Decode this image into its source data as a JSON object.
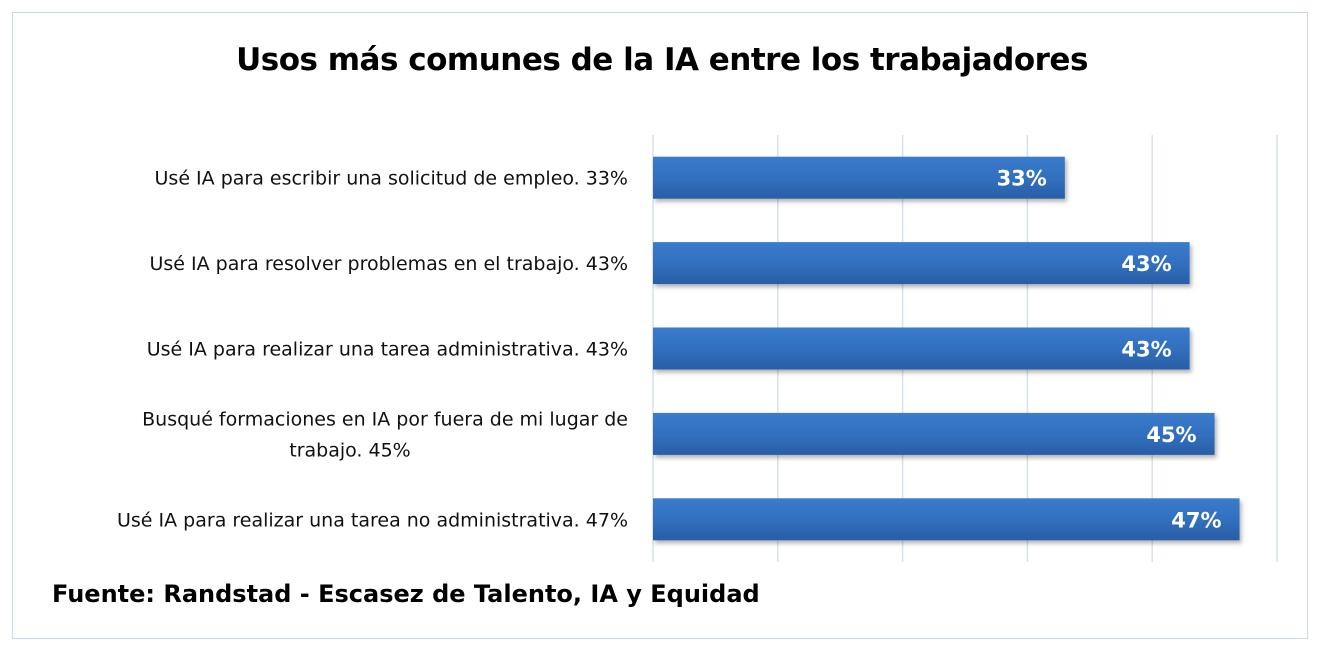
{
  "chart_data": {
    "type": "bar",
    "orientation": "horizontal",
    "title": "Usos más comunes de la IA entre los trabajadores",
    "categories": [
      [
        "Usé IA para escribir una solicitud de empleo. 33%"
      ],
      [
        "Usé IA para resolver problemas en el trabajo. 43%"
      ],
      [
        "Usé IA para realizar una tarea administrativa. 43%"
      ],
      [
        "Busqué formaciones en IA por fuera de mi lugar de",
        "trabajo. 45%"
      ],
      [
        "Usé IA para realizar una tarea no administrativa. 47%"
      ]
    ],
    "values": [
      33,
      43,
      43,
      45,
      47
    ],
    "data_labels": [
      "33%",
      "43%",
      "43%",
      "45%",
      "47%"
    ],
    "xlim": [
      0,
      50
    ],
    "grid_step": 10,
    "grid": true,
    "x_tick_labels_visible": false,
    "bar_color": "#3170bf",
    "gridline_color": "#d6e2ee"
  },
  "source": "Fuente: Randstad - Escasez de Talento, IA y Equidad"
}
